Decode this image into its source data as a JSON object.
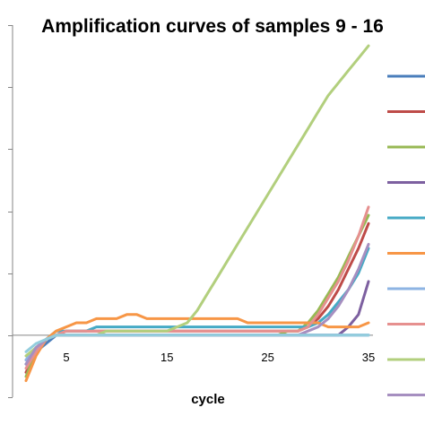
{
  "chart_data": {
    "type": "line",
    "title": "Amplification curves of samples 9 - 16",
    "xlabel": "cycle",
    "ylabel": "",
    "xlim": [
      1,
      35
    ],
    "ylim": [
      -0.15,
      0.75
    ],
    "xticks": [
      5,
      15,
      25,
      35
    ],
    "grid": false,
    "legend_position": "right",
    "series": [
      {
        "color": "#4a7ebb",
        "y": [
          -0.07,
          -0.04,
          -0.02,
          0.0,
          0.0,
          0.0,
          0.0,
          0.0,
          0.0,
          0.0,
          0.0,
          0.0,
          0.0,
          0.0,
          0.0,
          0.0,
          0.0,
          0.0,
          0.0,
          0.0,
          0.0,
          0.0,
          0.0,
          0.0,
          0.0,
          0.0,
          0.0,
          0.0,
          0.0,
          0.0,
          0.0,
          0.0,
          0.0,
          0.0,
          0.0
        ]
      },
      {
        "color": "#be4b48",
        "y": [
          -0.09,
          -0.04,
          -0.01,
          0.0,
          0.01,
          0.01,
          0.01,
          0.01,
          0.01,
          0.01,
          0.01,
          0.01,
          0.01,
          0.01,
          0.01,
          0.01,
          0.01,
          0.01,
          0.01,
          0.01,
          0.01,
          0.01,
          0.01,
          0.01,
          0.01,
          0.01,
          0.01,
          0.01,
          0.02,
          0.04,
          0.07,
          0.11,
          0.16,
          0.21,
          0.27
        ]
      },
      {
        "color": "#98b954",
        "y": [
          -0.1,
          -0.04,
          -0.01,
          0.0,
          0.0,
          0.0,
          0.0,
          0.0,
          0.0,
          0.0,
          0.0,
          0.0,
          0.0,
          0.0,
          0.0,
          0.0,
          0.0,
          0.0,
          0.0,
          0.0,
          0.0,
          0.0,
          0.0,
          0.0,
          0.0,
          0.0,
          0.01,
          0.01,
          0.03,
          0.06,
          0.1,
          0.14,
          0.19,
          0.24,
          0.29
        ]
      },
      {
        "color": "#7d60a0",
        "y": [
          -0.06,
          -0.03,
          -0.01,
          0.0,
          0.0,
          0.0,
          0.0,
          0.0,
          0.0,
          0.0,
          0.0,
          0.0,
          0.0,
          0.0,
          0.0,
          0.0,
          0.0,
          0.0,
          0.0,
          0.0,
          0.0,
          0.0,
          0.0,
          0.0,
          0.0,
          0.0,
          0.0,
          0.0,
          0.0,
          0.0,
          0.0,
          0.0,
          0.02,
          0.05,
          0.13
        ]
      },
      {
        "color": "#46aac5",
        "y": [
          -0.07,
          -0.04,
          -0.01,
          0.01,
          0.01,
          0.01,
          0.01,
          0.02,
          0.02,
          0.02,
          0.02,
          0.02,
          0.02,
          0.02,
          0.02,
          0.02,
          0.02,
          0.02,
          0.02,
          0.02,
          0.02,
          0.02,
          0.02,
          0.02,
          0.02,
          0.02,
          0.02,
          0.02,
          0.02,
          0.03,
          0.05,
          0.08,
          0.11,
          0.15,
          0.21
        ]
      },
      {
        "color": "#f79646",
        "y": [
          -0.11,
          -0.05,
          -0.01,
          0.01,
          0.02,
          0.03,
          0.03,
          0.04,
          0.04,
          0.04,
          0.05,
          0.05,
          0.04,
          0.04,
          0.04,
          0.04,
          0.04,
          0.04,
          0.04,
          0.04,
          0.04,
          0.04,
          0.03,
          0.03,
          0.03,
          0.03,
          0.03,
          0.03,
          0.03,
          0.03,
          0.02,
          0.02,
          0.02,
          0.02,
          0.03
        ]
      },
      {
        "color": "#8eb4e3",
        "y": [
          -0.06,
          -0.03,
          -0.01,
          0.0,
          0.0,
          0.0,
          0.0,
          0.0,
          0.0,
          0.0,
          0.0,
          0.0,
          0.0,
          0.0,
          0.0,
          0.0,
          0.0,
          0.0,
          0.0,
          0.0,
          0.0,
          0.0,
          0.0,
          0.0,
          0.0,
          0.0,
          0.0,
          0.0,
          0.0,
          0.0,
          0.0,
          0.0,
          0.0,
          0.0,
          0.0
        ]
      },
      {
        "color": "#e6908f",
        "y": [
          -0.08,
          -0.04,
          -0.01,
          0.0,
          0.01,
          0.01,
          0.01,
          0.01,
          0.01,
          0.01,
          0.01,
          0.01,
          0.01,
          0.01,
          0.01,
          0.01,
          0.01,
          0.01,
          0.01,
          0.01,
          0.01,
          0.01,
          0.01,
          0.01,
          0.01,
          0.01,
          0.01,
          0.01,
          0.02,
          0.05,
          0.09,
          0.13,
          0.18,
          0.24,
          0.31
        ]
      },
      {
        "color": "#b2cf7d",
        "y": [
          -0.05,
          -0.03,
          -0.01,
          0.0,
          0.0,
          0.0,
          0.0,
          0.0,
          0.01,
          0.01,
          0.01,
          0.01,
          0.01,
          0.01,
          0.01,
          0.02,
          0.03,
          0.06,
          0.1,
          0.14,
          0.18,
          0.22,
          0.26,
          0.3,
          0.34,
          0.38,
          0.42,
          0.46,
          0.5,
          0.54,
          0.58,
          0.61,
          0.64,
          0.67,
          0.7
        ]
      },
      {
        "color": "#a68fc0",
        "y": [
          -0.07,
          -0.03,
          -0.01,
          0.0,
          0.0,
          0.0,
          0.0,
          0.0,
          0.0,
          0.0,
          0.0,
          0.0,
          0.0,
          0.0,
          0.0,
          0.0,
          0.0,
          0.0,
          0.0,
          0.0,
          0.0,
          0.0,
          0.0,
          0.0,
          0.0,
          0.0,
          0.0,
          0.0,
          0.01,
          0.02,
          0.04,
          0.07,
          0.11,
          0.16,
          0.22
        ]
      },
      {
        "color": "#93cddd",
        "y": [
          -0.04,
          -0.02,
          -0.01,
          0.0,
          0.0,
          0.0,
          0.0,
          0.0,
          0.0,
          0.0,
          0.0,
          0.0,
          0.0,
          0.0,
          0.0,
          0.0,
          0.0,
          0.0,
          0.0,
          0.0,
          0.0,
          0.0,
          0.0,
          0.0,
          0.0,
          0.0,
          0.0,
          0.0,
          0.0,
          0.0,
          0.0,
          0.0,
          0.0,
          0.0,
          0.0
        ]
      }
    ]
  }
}
